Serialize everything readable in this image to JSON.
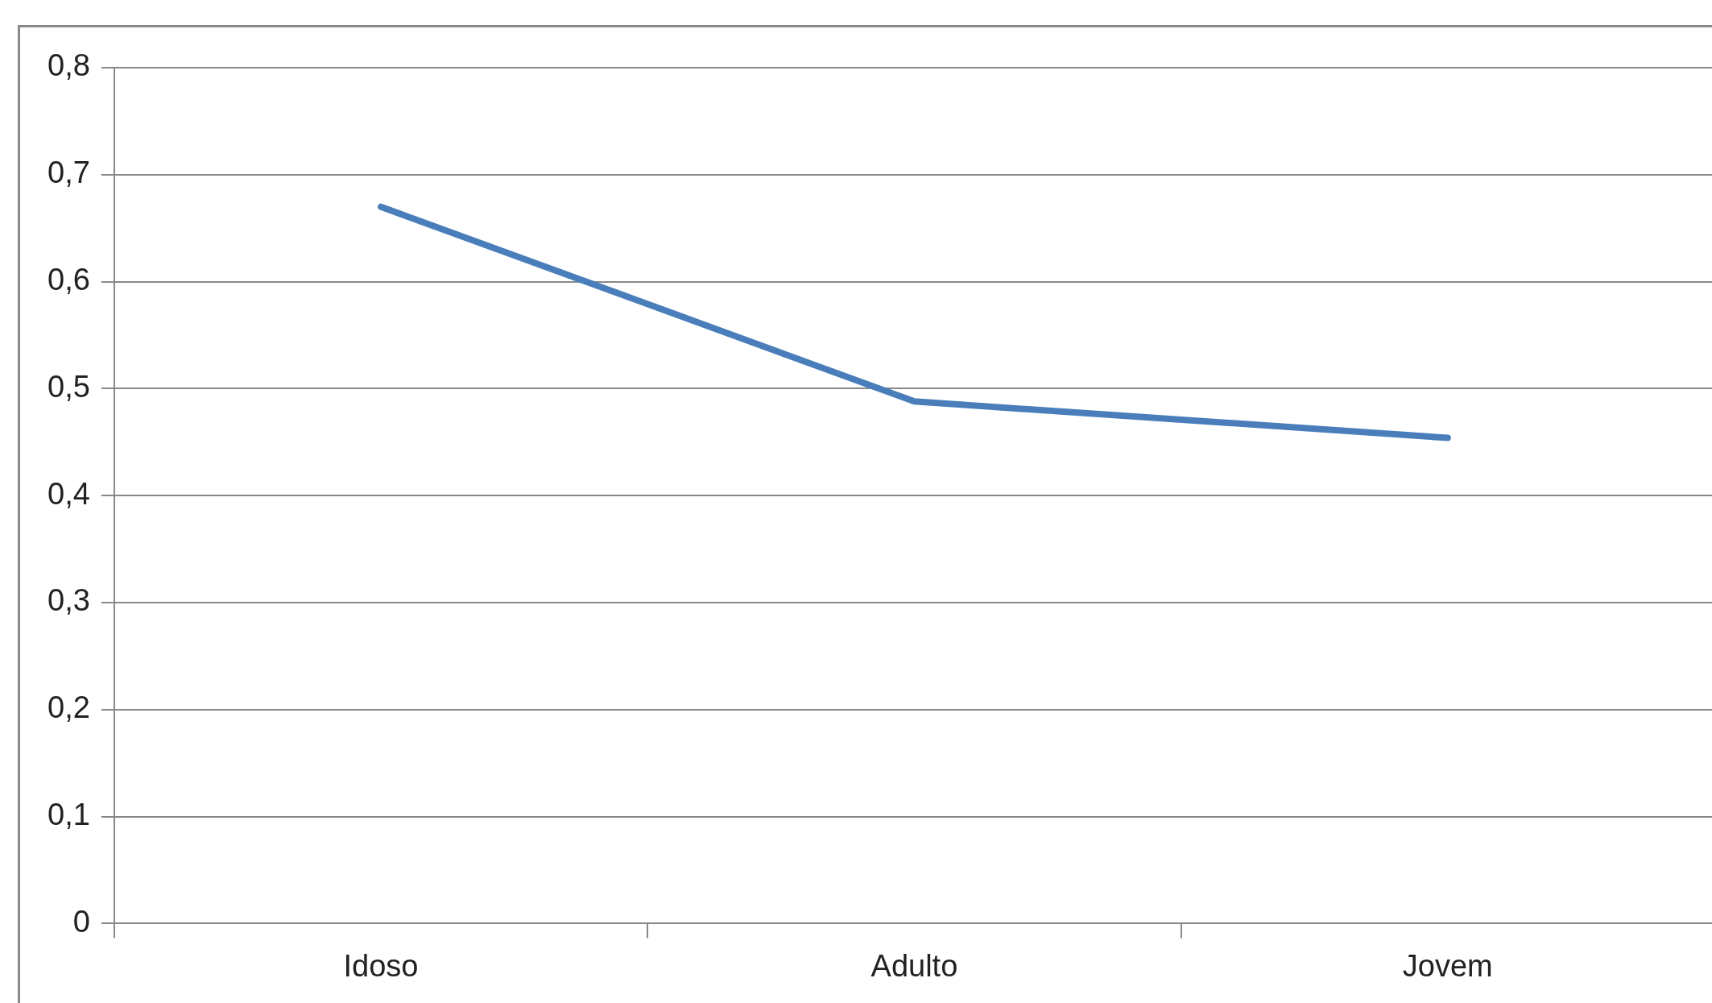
{
  "chart_data": {
    "type": "line",
    "categories": [
      "Idoso",
      "Adulto",
      "Jovem"
    ],
    "series": [
      {
        "color": "#4a7ebb",
        "values": [
          0.67,
          0.488,
          0.454
        ]
      }
    ],
    "ylim": [
      0,
      0.8
    ],
    "yticks": [
      {
        "value": 0,
        "label": "0"
      },
      {
        "value": 0.1,
        "label": "0,1"
      },
      {
        "value": 0.2,
        "label": "0,2"
      },
      {
        "value": 0.3,
        "label": "0,3"
      },
      {
        "value": 0.4,
        "label": "0,4"
      },
      {
        "value": 0.5,
        "label": "0,5"
      },
      {
        "value": 0.6,
        "label": "0,6"
      },
      {
        "value": 0.7,
        "label": "0,7"
      },
      {
        "value": 0.8,
        "label": "0,8"
      }
    ],
    "grid": "y",
    "legend": false,
    "marker": "none",
    "line_style": "solid"
  }
}
